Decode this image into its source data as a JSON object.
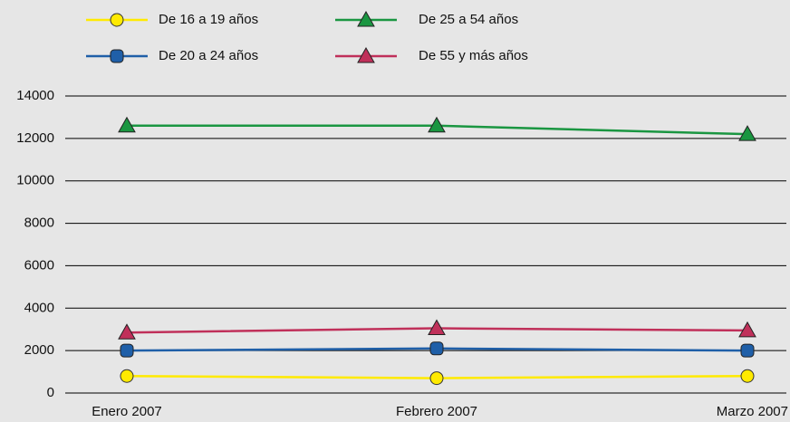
{
  "chart_data": {
    "type": "line",
    "categories": [
      "Enero 2007",
      "Febrero 2007",
      "Marzo 2007"
    ],
    "series": [
      {
        "name": "De 16 a 19 años",
        "color": "#ffea00",
        "marker": "circle",
        "values": [
          800,
          700,
          800
        ]
      },
      {
        "name": "De 20 a 24 años",
        "color": "#1f5fa8",
        "marker": "square",
        "values": [
          2000,
          2100,
          2000
        ]
      },
      {
        "name": "De 25 a 54 años",
        "color": "#1a9641",
        "marker": "triangle",
        "values": [
          12600,
          12600,
          12200
        ]
      },
      {
        "name": "De 55 y más años",
        "color": "#c0305a",
        "marker": "triangle",
        "values": [
          2850,
          3050,
          2950
        ]
      }
    ],
    "ylim": [
      0,
      14000
    ],
    "yticks": [
      0,
      2000,
      4000,
      6000,
      8000,
      10000,
      12000,
      14000
    ],
    "grid": true,
    "legend": "top"
  }
}
